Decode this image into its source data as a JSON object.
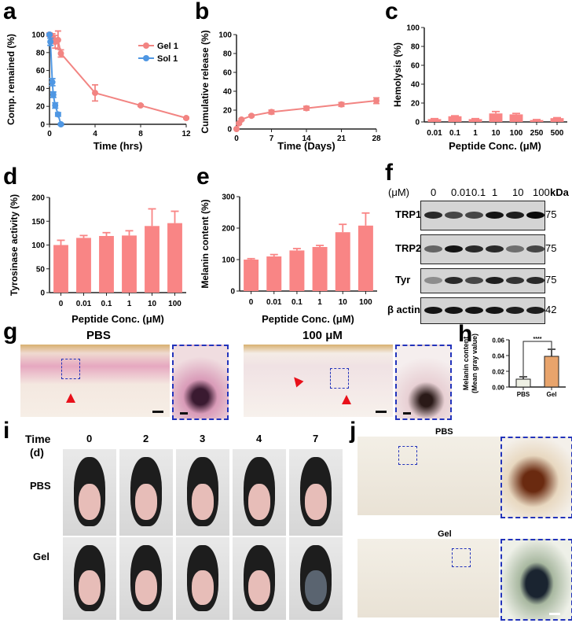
{
  "panel_letters": [
    "a",
    "b",
    "c",
    "d",
    "e",
    "f",
    "g",
    "h",
    "i",
    "j"
  ],
  "colors": {
    "gel": "#f28482",
    "sol": "#4f97e3",
    "bar": "#f98585",
    "h_pbs": "#eef0e4",
    "h_gel": "#e8a46c"
  },
  "chart_data": [
    {
      "type": "line",
      "ylabel": "Comp. remained (%)",
      "xlabel": "Time (hrs)",
      "xlim": [
        0,
        12
      ],
      "ylim": [
        0,
        100
      ],
      "xticks": [
        "0",
        "4",
        "8",
        "12"
      ],
      "yticks": [
        "0",
        "20",
        "40",
        "60",
        "80",
        "100"
      ],
      "legend": "top-right",
      "series": [
        {
          "name": "Gel 1",
          "x": [
            0,
            0.25,
            0.5,
            0.75,
            1,
            4,
            8,
            12
          ],
          "y": [
            100,
            97,
            92,
            94,
            79,
            35,
            21,
            7
          ],
          "err": [
            2,
            4,
            7,
            10,
            4,
            9,
            1,
            1
          ]
        },
        {
          "name": "Sol 1",
          "x": [
            0,
            0.08,
            0.25,
            0.33,
            0.5,
            0.75,
            1
          ],
          "y": [
            100,
            92,
            47,
            33,
            21,
            11,
            0
          ],
          "err": [
            1,
            4,
            4,
            3,
            3,
            2,
            1
          ]
        }
      ]
    },
    {
      "type": "line",
      "ylabel": "Cumulative  release (%)",
      "xlabel": "Time (Days)",
      "xlim": [
        0,
        28
      ],
      "ylim": [
        0,
        100
      ],
      "xticks": [
        "0",
        "7",
        "14",
        "21",
        "28"
      ],
      "yticks": [
        "0",
        "20",
        "40",
        "60",
        "80",
        "100"
      ],
      "series": [
        {
          "x": [
            0,
            0.5,
            1,
            3,
            7,
            14,
            21,
            28
          ],
          "y": [
            0,
            6,
            10,
            14,
            18,
            22,
            26,
            30
          ],
          "err": [
            0,
            1,
            1,
            1,
            2,
            2,
            2,
            3
          ]
        }
      ]
    },
    {
      "type": "bar",
      "ylabel": "Hemolysis (%)",
      "xlabel": "Peptide Conc. (μM)",
      "ylim": [
        0,
        100
      ],
      "categories": [
        "0.01",
        "0.1",
        "1",
        "10",
        "100",
        "250",
        "500"
      ],
      "yticks": [
        "0",
        "20",
        "40",
        "60",
        "80",
        "100"
      ],
      "values": [
        3,
        6,
        3,
        9,
        8,
        2,
        4
      ],
      "err": [
        0.5,
        0.5,
        0.5,
        2,
        1,
        0.5,
        0.5
      ]
    },
    {
      "type": "bar",
      "ylabel": "Tyrosinase activity (%)",
      "xlabel": "Peptide Conc. (μM)",
      "ylim": [
        0,
        200
      ],
      "categories": [
        "0",
        "0.01",
        "0.1",
        "1",
        "10",
        "100"
      ],
      "yticks": [
        "0",
        "50",
        "100",
        "150",
        "200"
      ],
      "values": [
        100,
        115,
        119,
        120,
        140,
        146
      ],
      "err": [
        10,
        5,
        7,
        10,
        36,
        25
      ]
    },
    {
      "type": "bar",
      "ylabel": "Melanin content (%)",
      "xlabel": "Peptide Conc. (μM)",
      "ylim": [
        0,
        300
      ],
      "categories": [
        "0",
        "0.01",
        "0.1",
        "1",
        "10",
        "100"
      ],
      "yticks": [
        "0",
        "100",
        "200",
        "300"
      ],
      "values": [
        100,
        110,
        129,
        140,
        187,
        208
      ],
      "err": [
        3,
        6,
        6,
        5,
        25,
        40
      ]
    },
    {
      "type": "bar",
      "ylabel": "Melanin content",
      "ylabel2": "(Mean gray value)",
      "ylim": [
        0,
        0.06
      ],
      "categories": [
        "PBS",
        "Gel"
      ],
      "yticks": [
        "0.00",
        "0.02",
        "0.04",
        "0.06"
      ],
      "values": [
        0.01,
        0.039
      ],
      "err": [
        0.003,
        0.009
      ],
      "significance": "****"
    }
  ],
  "blot": {
    "unit": "(μM)",
    "lanes": [
      "0",
      "0.01",
      "0.1",
      "1",
      "10",
      "100"
    ],
    "kda_label": "kDa",
    "rows": [
      {
        "name": "TRP1",
        "kda": "75",
        "intensity": [
          0.85,
          0.7,
          0.7,
          0.95,
          0.9,
          1
        ]
      },
      {
        "name": "TRP2",
        "kda": "75",
        "intensity": [
          0.55,
          0.95,
          0.85,
          0.85,
          0.5,
          0.7
        ]
      },
      {
        "name": "Tyr",
        "kda": "75",
        "intensity": [
          0.35,
          0.85,
          0.7,
          0.9,
          0.8,
          0.85
        ]
      },
      {
        "name": "β actin",
        "kda": "42",
        "intensity": [
          0.95,
          0.95,
          0.95,
          0.95,
          0.9,
          0.9
        ]
      }
    ]
  },
  "histology": {
    "pbs": "PBS",
    "treated": "100 μM"
  },
  "mice": {
    "time_label": "Time",
    "time_unit": "(d)",
    "days": [
      "0",
      "2",
      "3",
      "4",
      "7"
    ],
    "rows": [
      "PBS",
      "Gel"
    ]
  },
  "staining": {
    "pbs": "PBS",
    "gel": "Gel"
  }
}
